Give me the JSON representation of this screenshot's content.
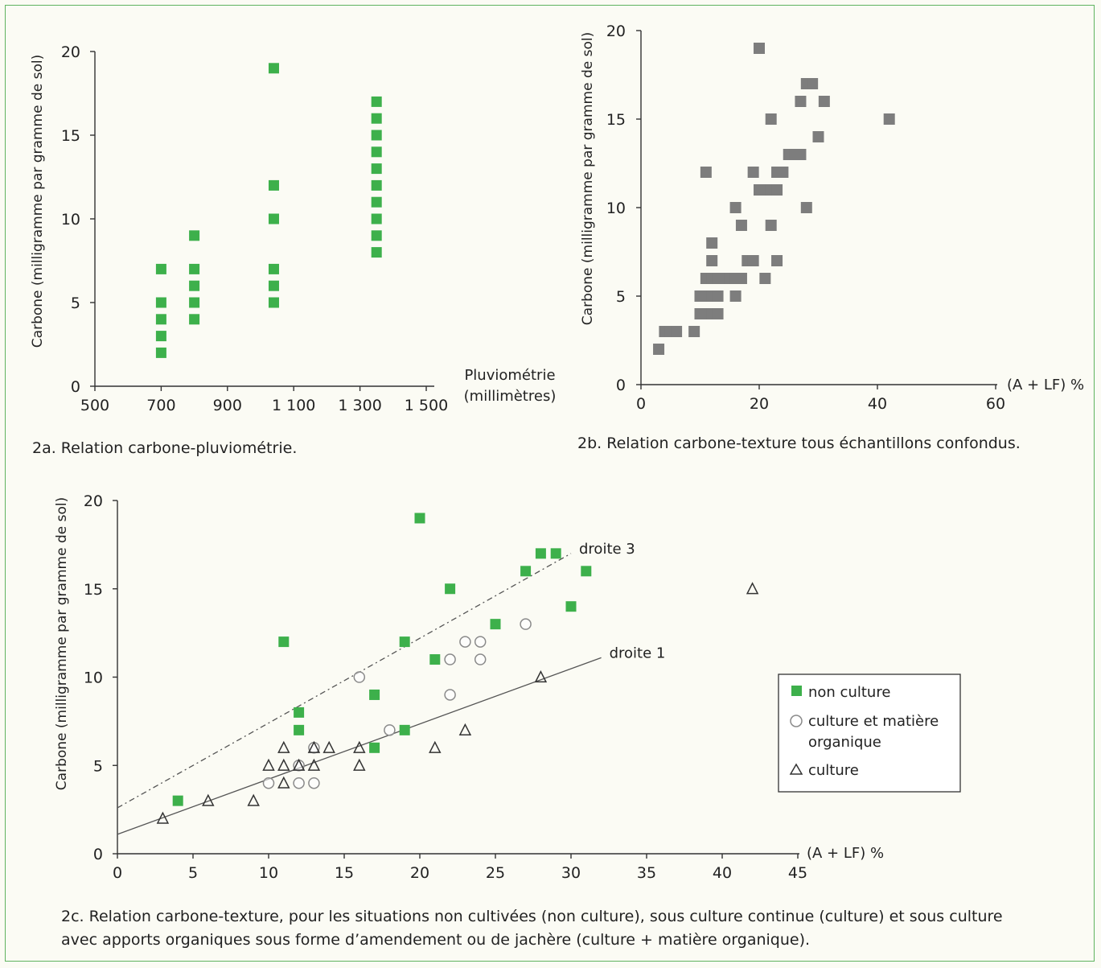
{
  "chart_data": [
    {
      "id": "2a",
      "type": "scatter",
      "caption": "2a. Relation carbone-pluviométrie.",
      "xlabel_line1": "Pluviométrie",
      "xlabel_line2": "(millimètres)",
      "ylabel": "Carbone (milligramme par gramme de sol)",
      "xlim": [
        500,
        1500
      ],
      "ylim": [
        0,
        20
      ],
      "xticks": [
        500,
        700,
        900,
        1100,
        1300,
        1500
      ],
      "xtick_labels": [
        "500",
        "700",
        "900",
        "1 100",
        "1 300",
        "1 500"
      ],
      "yticks": [
        0,
        5,
        10,
        15,
        20
      ],
      "ytick_labels": [
        "0",
        "5",
        "10",
        "15",
        "20"
      ],
      "marker_color": "#3db04b",
      "points": [
        [
          700,
          2
        ],
        [
          700,
          3
        ],
        [
          700,
          4
        ],
        [
          700,
          5
        ],
        [
          700,
          7
        ],
        [
          800,
          4
        ],
        [
          800,
          5
        ],
        [
          800,
          6
        ],
        [
          800,
          7
        ],
        [
          800,
          9
        ],
        [
          1040,
          5
        ],
        [
          1040,
          6
        ],
        [
          1040,
          7
        ],
        [
          1040,
          10
        ],
        [
          1040,
          12
        ],
        [
          1040,
          19
        ],
        [
          1350,
          8
        ],
        [
          1350,
          9
        ],
        [
          1350,
          10
        ],
        [
          1350,
          11
        ],
        [
          1350,
          12
        ],
        [
          1350,
          13
        ],
        [
          1350,
          14
        ],
        [
          1350,
          15
        ],
        [
          1350,
          16
        ],
        [
          1350,
          17
        ]
      ]
    },
    {
      "id": "2b",
      "type": "scatter",
      "caption": "2b. Relation carbone-texture tous échantillons confondus.",
      "xlabel": "(A + LF) %",
      "ylabel": "Carbone (milligramme par gramme de sol)",
      "xlim": [
        0,
        60
      ],
      "ylim": [
        0,
        20
      ],
      "xticks": [
        0,
        20,
        40,
        60
      ],
      "xtick_labels": [
        "0",
        "20",
        "40",
        "60"
      ],
      "yticks": [
        0,
        5,
        10,
        15,
        20
      ],
      "ytick_labels": [
        "0",
        "5",
        "10",
        "15",
        "20"
      ],
      "marker_color": "#7d7d7d",
      "points": [
        [
          3,
          2
        ],
        [
          4,
          3
        ],
        [
          5,
          3
        ],
        [
          6,
          3
        ],
        [
          9,
          3
        ],
        [
          10,
          4
        ],
        [
          11,
          4
        ],
        [
          12,
          4
        ],
        [
          13,
          4
        ],
        [
          10,
          5
        ],
        [
          11,
          5
        ],
        [
          12,
          5
        ],
        [
          13,
          5
        ],
        [
          16,
          5
        ],
        [
          11,
          6
        ],
        [
          12,
          6
        ],
        [
          13,
          6
        ],
        [
          14,
          6
        ],
        [
          15,
          6
        ],
        [
          16,
          6
        ],
        [
          17,
          6
        ],
        [
          21,
          6
        ],
        [
          12,
          7
        ],
        [
          18,
          7
        ],
        [
          19,
          7
        ],
        [
          23,
          7
        ],
        [
          12,
          8
        ],
        [
          17,
          9
        ],
        [
          22,
          9
        ],
        [
          16,
          10
        ],
        [
          28,
          10
        ],
        [
          20,
          11
        ],
        [
          21,
          11
        ],
        [
          22,
          11
        ],
        [
          23,
          11
        ],
        [
          11,
          12
        ],
        [
          19,
          12
        ],
        [
          23,
          12
        ],
        [
          24,
          12
        ],
        [
          25,
          13
        ],
        [
          26,
          13
        ],
        [
          27,
          13
        ],
        [
          30,
          14
        ],
        [
          22,
          15
        ],
        [
          42,
          15
        ],
        [
          27,
          16
        ],
        [
          31,
          16
        ],
        [
          28,
          17
        ],
        [
          29,
          17
        ],
        [
          20,
          19
        ]
      ]
    },
    {
      "id": "2c",
      "type": "scatter",
      "caption_line1": "2c. Relation carbone-texture, pour les situations non cultivées (non culture), sous culture continue (culture) et sous culture",
      "caption_line2": "avec apports organiques sous forme d’amendement ou de jachère (culture + matière organique).",
      "xlabel": "(A + LF) %",
      "ylabel": "Carbone (milligramme par gramme de sol)",
      "xlim": [
        0,
        45
      ],
      "ylim": [
        0,
        20
      ],
      "xticks": [
        0,
        5,
        10,
        15,
        20,
        25,
        30,
        35,
        40,
        45
      ],
      "xtick_labels": [
        "0",
        "5",
        "10",
        "15",
        "20",
        "25",
        "30",
        "35",
        "40",
        "45"
      ],
      "yticks": [
        0,
        5,
        10,
        15,
        20
      ],
      "ytick_labels": [
        "0",
        "5",
        "10",
        "15",
        "20"
      ],
      "lines": [
        {
          "label": "droite 3",
          "style": "dashdot",
          "points": [
            [
              0,
              2.6
            ],
            [
              30,
              17
            ]
          ]
        },
        {
          "label": "droite 1",
          "style": "solid",
          "points": [
            [
              0,
              1.1
            ],
            [
              32,
              11.1
            ]
          ]
        }
      ],
      "legend": [
        "non culture",
        "culture et matière",
        "organique",
        "culture"
      ],
      "series": [
        {
          "legend_index": 0,
          "marker": "square",
          "color": "#3db04b",
          "points": [
            [
              4,
              3
            ],
            [
              11,
              12
            ],
            [
              12,
              7
            ],
            [
              12,
              8
            ],
            [
              17,
              6
            ],
            [
              17,
              9
            ],
            [
              19,
              7
            ],
            [
              19,
              12
            ],
            [
              20,
              19
            ],
            [
              21,
              11
            ],
            [
              22,
              15
            ],
            [
              25,
              13
            ],
            [
              27,
              16
            ],
            [
              28,
              17
            ],
            [
              29,
              17
            ],
            [
              30,
              14
            ],
            [
              31,
              16
            ]
          ]
        },
        {
          "legend_index": 1,
          "marker": "circle",
          "color": "#8a8a8a",
          "points": [
            [
              10,
              4
            ],
            [
              12,
              4
            ],
            [
              12,
              5
            ],
            [
              13,
              4
            ],
            [
              13,
              6
            ],
            [
              16,
              10
            ],
            [
              18,
              7
            ],
            [
              22,
              9
            ],
            [
              22,
              11
            ],
            [
              23,
              12
            ],
            [
              24,
              11
            ],
            [
              24,
              12
            ],
            [
              27,
              13
            ]
          ]
        },
        {
          "legend_index": 3,
          "marker": "triangle",
          "color": "#333333",
          "points": [
            [
              3,
              2
            ],
            [
              6,
              3
            ],
            [
              9,
              3
            ],
            [
              10,
              5
            ],
            [
              11,
              4
            ],
            [
              11,
              5
            ],
            [
              11,
              6
            ],
            [
              12,
              5
            ],
            [
              13,
              5
            ],
            [
              13,
              6
            ],
            [
              14,
              6
            ],
            [
              16,
              5
            ],
            [
              16,
              6
            ],
            [
              21,
              6
            ],
            [
              23,
              7
            ],
            [
              28,
              10
            ],
            [
              42,
              15
            ]
          ]
        }
      ]
    }
  ]
}
